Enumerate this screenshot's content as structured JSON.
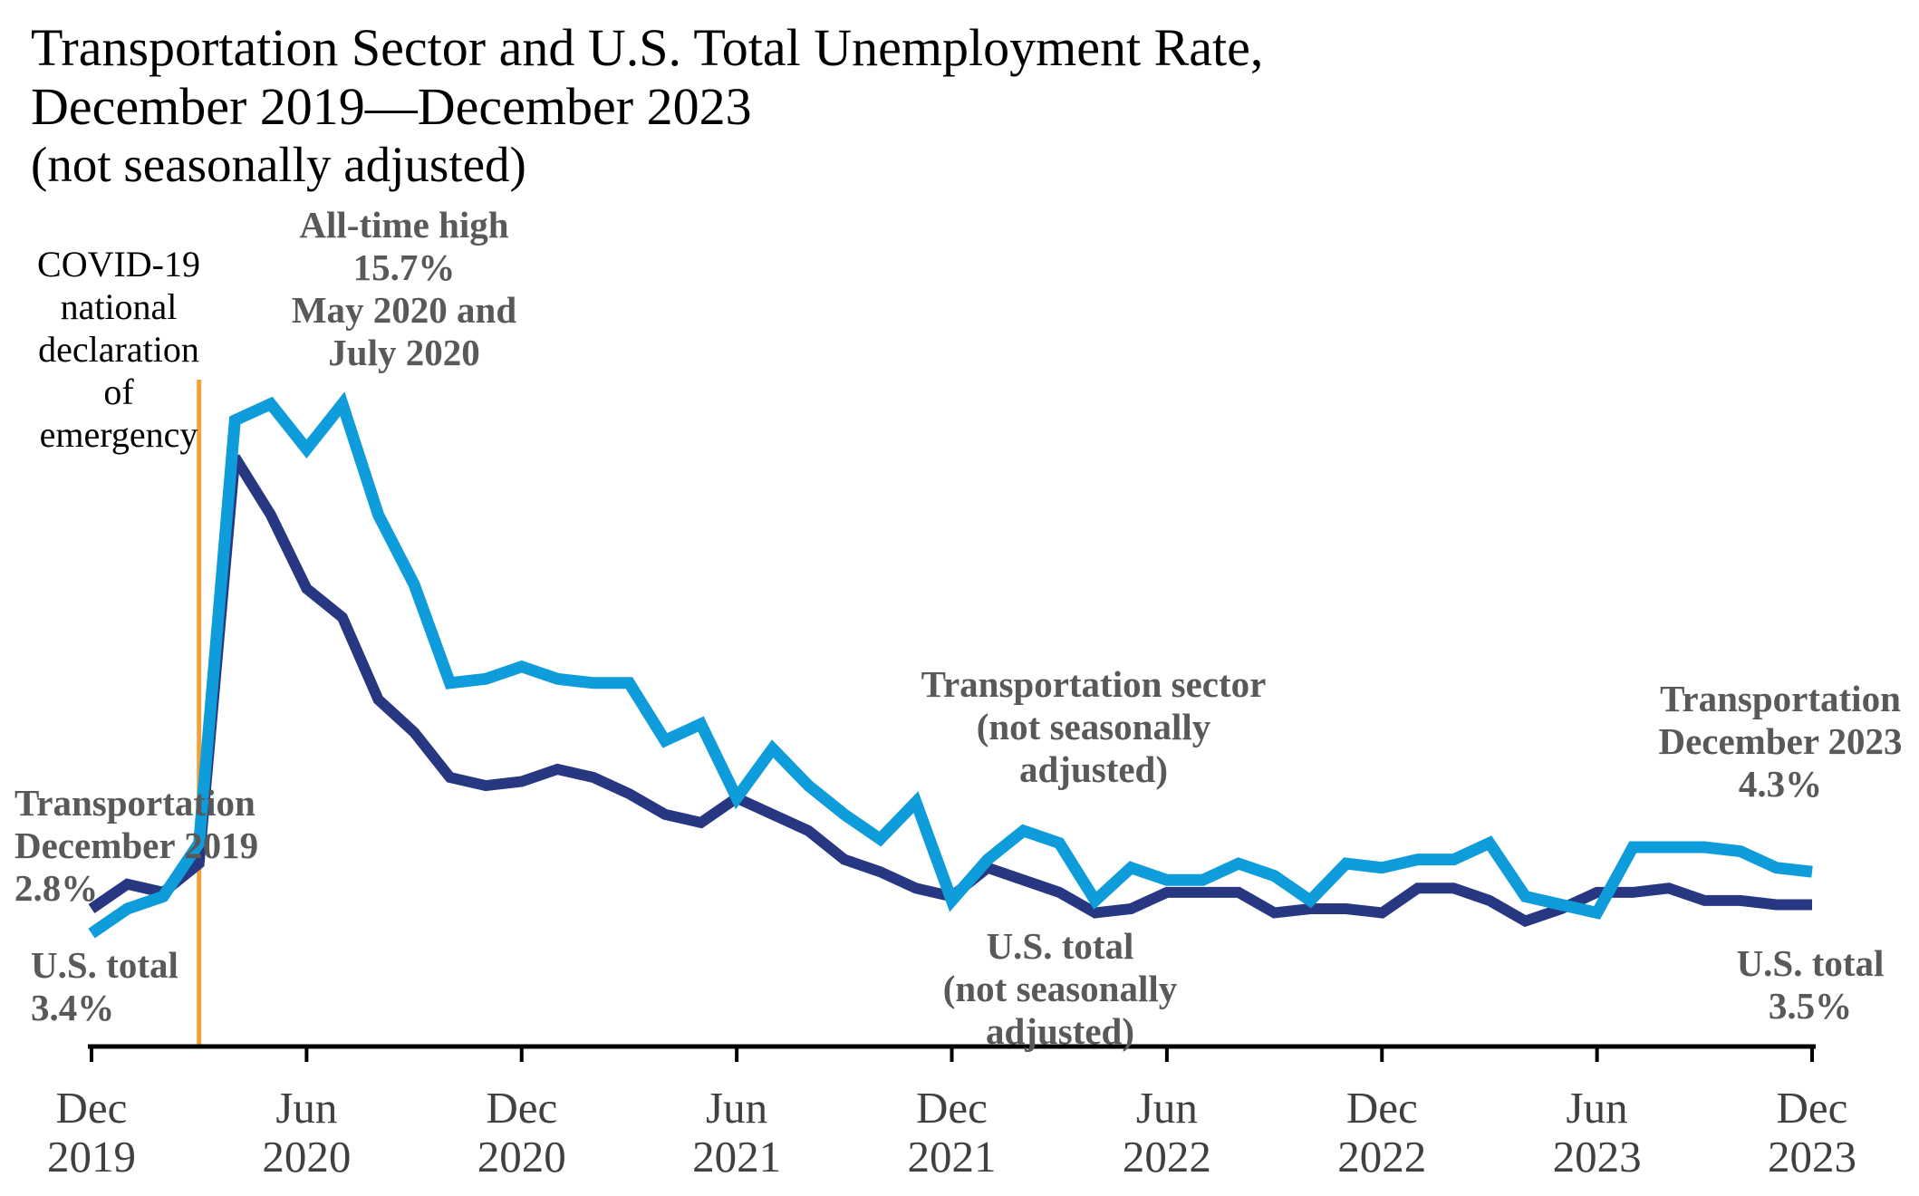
{
  "chart_data": {
    "type": "line",
    "title": [
      "Transportation Sector and U.S. Total Unemployment Rate,",
      "December 2019—December 2023"
    ],
    "subtitle": "(not seasonally adjusted)",
    "xlim": [
      0,
      48
    ],
    "ylim": [
      0,
      16
    ],
    "xticks": [
      {
        "index": 0,
        "month": "Dec",
        "year": "2019"
      },
      {
        "index": 6,
        "month": "Jun",
        "year": "2020"
      },
      {
        "index": 12,
        "month": "Dec",
        "year": "2020"
      },
      {
        "index": 18,
        "month": "Jun",
        "year": "2021"
      },
      {
        "index": 24,
        "month": "Dec",
        "year": "2021"
      },
      {
        "index": 30,
        "month": "Jun",
        "year": "2022"
      },
      {
        "index": 36,
        "month": "Dec",
        "year": "2022"
      },
      {
        "index": 42,
        "month": "Jun",
        "year": "2023"
      },
      {
        "index": 48,
        "month": "Dec",
        "year": "2023"
      }
    ],
    "series": [
      {
        "label_lines": [
          "U.S. total",
          "(not seasonally",
          "adjusted)"
        ],
        "color": "#283782",
        "values": [
          3.4,
          4.0,
          3.8,
          4.5,
          14.4,
          13.0,
          11.2,
          10.5,
          8.5,
          7.7,
          6.6,
          6.4,
          6.5,
          6.8,
          6.6,
          6.2,
          5.7,
          5.5,
          6.1,
          5.7,
          5.3,
          4.6,
          4.3,
          3.9,
          3.7,
          4.4,
          4.1,
          3.8,
          3.3,
          3.4,
          3.8,
          3.8,
          3.8,
          3.3,
          3.4,
          3.4,
          3.3,
          3.9,
          3.9,
          3.6,
          3.1,
          3.4,
          3.8,
          3.8,
          3.9,
          3.6,
          3.6,
          3.5,
          3.5
        ]
      },
      {
        "label_lines": [
          "Transportation sector",
          "(not seasonally",
          "adjusted)"
        ],
        "color": "#0E9DDA",
        "values": [
          2.8,
          3.4,
          3.7,
          5.0,
          15.3,
          15.7,
          14.6,
          15.7,
          13.0,
          11.3,
          8.9,
          9.0,
          9.3,
          9.0,
          8.9,
          8.9,
          7.5,
          7.9,
          6.1,
          7.3,
          6.4,
          5.7,
          5.1,
          6.0,
          3.6,
          4.6,
          5.3,
          5.0,
          3.6,
          4.4,
          4.1,
          4.1,
          4.5,
          4.2,
          3.6,
          4.5,
          4.4,
          4.6,
          4.6,
          5.0,
          3.7,
          3.5,
          3.3,
          4.9,
          4.9,
          4.9,
          4.8,
          4.4,
          4.3
        ]
      }
    ],
    "event_line": {
      "index": 3,
      "color": "#F4A03A",
      "label_lines": [
        "COVID-19",
        "national",
        "declaration",
        "of",
        "emergency"
      ]
    },
    "annotations": {
      "peak": [
        "All-time high",
        "15.7%",
        "May 2020 and",
        "July 2020"
      ],
      "transportation_start": [
        "Transportation",
        "December 2019",
        "2.8%"
      ],
      "us_total_start": [
        "U.S. total",
        "3.4%"
      ],
      "transportation_end": [
        "Transportation",
        "December 2023",
        "4.3%"
      ],
      "us_total_end": [
        "U.S. total",
        "3.5%"
      ]
    },
    "colors": {
      "annotation_text": "#595959",
      "tick_label_text": "#404040",
      "axis": "#000000",
      "title_text": "#000000"
    }
  }
}
